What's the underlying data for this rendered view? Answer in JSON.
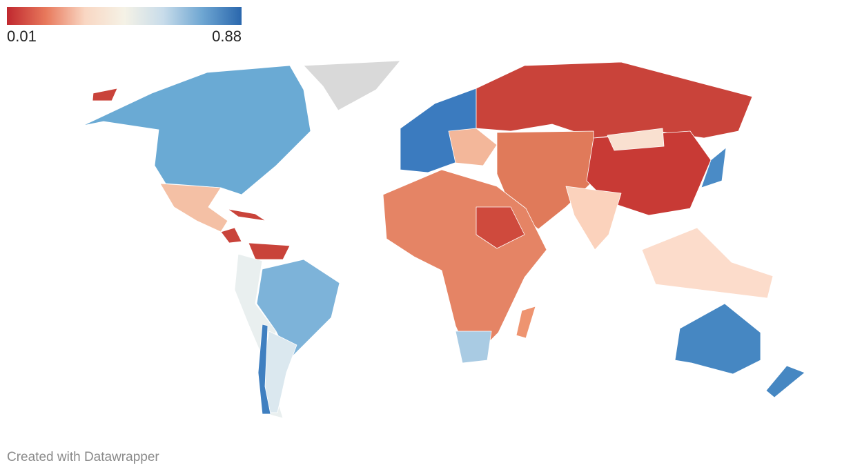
{
  "legend": {
    "min": 0.01,
    "max": 0.88,
    "colors": [
      "#c0282f",
      "#e8795c",
      "#f9d7c3",
      "#f5f2e6",
      "#c8dcea",
      "#6ea6d2",
      "#2a67ad"
    ]
  },
  "footer": "Created with Datawrapper"
}
